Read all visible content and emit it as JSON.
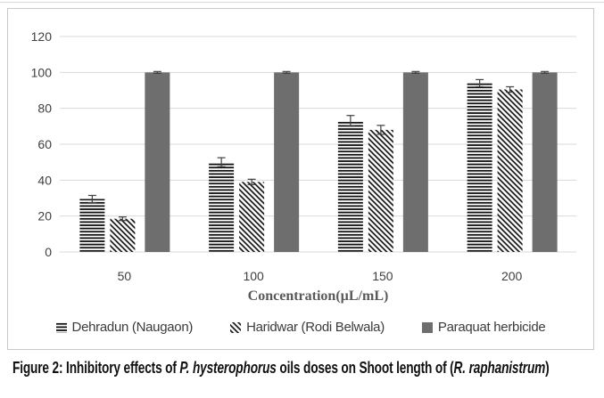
{
  "figure": {
    "caption_segments": [
      {
        "text": "Figure 2: Inhibitory effects of ",
        "italic": false
      },
      {
        "text": "P. hysterophorus",
        "italic": true
      },
      {
        "text": " oils doses on Shoot length of (",
        "italic": false
      },
      {
        "text": "R. raphanistrum",
        "italic": true
      },
      {
        "text": ")",
        "italic": false
      }
    ]
  },
  "chart_data": {
    "type": "bar",
    "title": "",
    "xlabel": "Concentration(µL/mL)",
    "ylabel": "",
    "categories": [
      "50",
      "100",
      "150",
      "200"
    ],
    "y_ticks": [
      0,
      20,
      40,
      60,
      80,
      100,
      120
    ],
    "ylim": [
      0,
      120
    ],
    "grid": true,
    "legend_position": "bottom",
    "series": [
      {
        "name": "Dehradun (Naugaon)",
        "pattern": "horizontal-lines",
        "color": "#111111",
        "values": [
          29.5,
          50,
          73,
          94
        ],
        "errors": [
          2,
          2.5,
          3,
          2
        ]
      },
      {
        "name": "Haridwar (Rodi Belwala)",
        "pattern": "diagonal-lines",
        "color": "#111111",
        "values": [
          18.5,
          39,
          68,
          90.5
        ],
        "errors": [
          1,
          1.5,
          2.5,
          1.5
        ]
      },
      {
        "name": "Paraquat herbicide",
        "pattern": "solid",
        "color": "#6e6e6e",
        "values": [
          100,
          100,
          100,
          100
        ],
        "errors": [
          0.5,
          0.5,
          0.5,
          0.5
        ]
      }
    ],
    "colors": {
      "grid": "#d9d9d9",
      "axis_text": "#404040",
      "error_bar": "#3f3f3f",
      "panel_border": "#c9c9c9"
    }
  }
}
